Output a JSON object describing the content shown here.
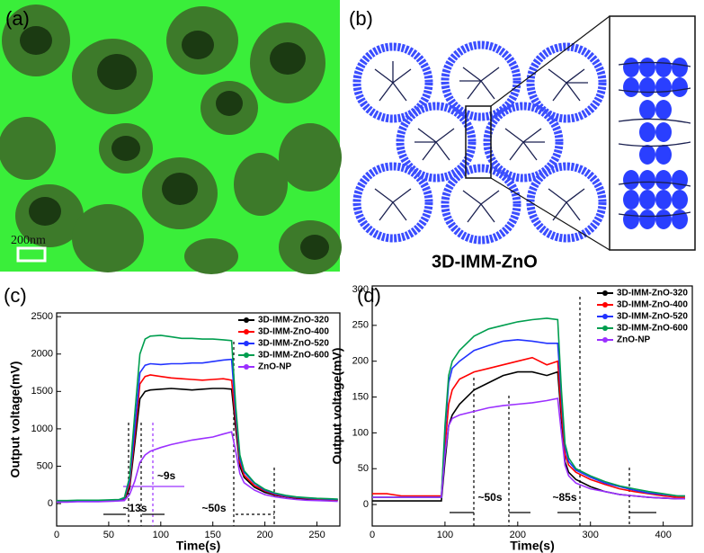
{
  "panels": {
    "a": {
      "label": "(a)",
      "scale_bar": "200nm"
    },
    "b": {
      "label": "(b)",
      "caption": "3D-IMM-ZnO"
    }
  },
  "chart_data": [
    {
      "type": "line",
      "panel_label": "(c)",
      "xlabel": "Time(s)",
      "ylabel": "Output voltage(mV)",
      "xlim": [
        0,
        272
      ],
      "ylim": [
        -300,
        2550
      ],
      "xticks": [
        0,
        50,
        100,
        150,
        200,
        250
      ],
      "yticks": [
        0,
        500,
        1000,
        1500,
        2000,
        2500
      ],
      "legend": "upper right",
      "annotations": [
        "~9s",
        "~13s",
        "~50s"
      ],
      "x": [
        0,
        10,
        20,
        30,
        40,
        50,
        60,
        65,
        70,
        75,
        80,
        85,
        90,
        100,
        110,
        120,
        130,
        140,
        150,
        160,
        168,
        172,
        176,
        180,
        190,
        200,
        210,
        220,
        230,
        240,
        250,
        260,
        270
      ],
      "series": [
        {
          "name": "3D-IMM-ZnO-320",
          "color": "#000000",
          "values": [
            30,
            30,
            35,
            30,
            35,
            35,
            40,
            50,
            200,
            800,
            1400,
            1500,
            1520,
            1530,
            1540,
            1530,
            1520,
            1530,
            1540,
            1540,
            1530,
            1000,
            500,
            350,
            220,
            150,
            110,
            90,
            70,
            60,
            55,
            50,
            45
          ]
        },
        {
          "name": "3D-IMM-ZnO-400",
          "color": "#ff0000",
          "values": [
            30,
            30,
            35,
            35,
            35,
            40,
            45,
            60,
            250,
            900,
            1600,
            1700,
            1720,
            1700,
            1680,
            1670,
            1660,
            1650,
            1660,
            1670,
            1650,
            1100,
            550,
            380,
            240,
            170,
            120,
            95,
            80,
            70,
            60,
            55,
            50
          ]
        },
        {
          "name": "3D-IMM-ZnO-520",
          "color": "#2233ff",
          "values": [
            35,
            35,
            40,
            40,
            40,
            45,
            50,
            70,
            300,
            1000,
            1750,
            1850,
            1870,
            1860,
            1870,
            1870,
            1880,
            1880,
            1900,
            1920,
            1930,
            1200,
            600,
            420,
            270,
            180,
            130,
            100,
            85,
            75,
            65,
            60,
            55
          ]
        },
        {
          "name": "3D-IMM-ZnO-600",
          "color": "#009e4f",
          "values": [
            40,
            40,
            45,
            45,
            45,
            50,
            55,
            80,
            350,
            1200,
            2000,
            2200,
            2240,
            2250,
            2230,
            2210,
            2210,
            2200,
            2200,
            2190,
            2180,
            1300,
            650,
            440,
            280,
            190,
            140,
            110,
            90,
            80,
            70,
            65,
            60
          ]
        },
        {
          "name": "ZnO-NP",
          "color": "#9b30ff",
          "values": [
            20,
            20,
            25,
            25,
            25,
            30,
            35,
            40,
            120,
            300,
            550,
            650,
            700,
            750,
            790,
            820,
            850,
            870,
            890,
            930,
            960,
            700,
            400,
            280,
            180,
            120,
            90,
            70,
            55,
            45,
            40,
            35,
            30
          ]
        }
      ]
    },
    {
      "type": "line",
      "panel_label": "(d)",
      "xlabel": "Time(s)",
      "ylabel": "Output voltage(mV)",
      "xlim": [
        0,
        440
      ],
      "ylim": [
        -30,
        305
      ],
      "xticks": [
        0,
        100,
        200,
        300,
        400
      ],
      "yticks": [
        0,
        50,
        100,
        150,
        200,
        250,
        300
      ],
      "legend": "upper right",
      "annotations": [
        "~50s",
        "~85s"
      ],
      "x": [
        0,
        20,
        40,
        60,
        80,
        95,
        100,
        105,
        110,
        120,
        140,
        160,
        180,
        200,
        220,
        240,
        255,
        260,
        265,
        270,
        280,
        300,
        320,
        340,
        360,
        380,
        400,
        420,
        430
      ],
      "series": [
        {
          "name": "3D-IMM-ZnO-320",
          "color": "#000000",
          "values": [
            5,
            5,
            5,
            5,
            5,
            5,
            60,
            110,
            125,
            140,
            160,
            170,
            180,
            185,
            185,
            180,
            185,
            120,
            60,
            45,
            35,
            25,
            18,
            14,
            12,
            10,
            9,
            8,
            8
          ]
        },
        {
          "name": "3D-IMM-ZnO-400",
          "color": "#ff0000",
          "values": [
            15,
            15,
            12,
            12,
            12,
            12,
            80,
            140,
            160,
            175,
            185,
            190,
            195,
            200,
            205,
            195,
            200,
            130,
            70,
            55,
            45,
            35,
            28,
            22,
            18,
            15,
            12,
            10,
            10
          ]
        },
        {
          "name": "3D-IMM-ZnO-520",
          "color": "#2233ff",
          "values": [
            10,
            10,
            10,
            10,
            10,
            10,
            100,
            170,
            190,
            200,
            215,
            222,
            228,
            230,
            228,
            225,
            225,
            150,
            80,
            60,
            48,
            38,
            30,
            25,
            20,
            16,
            14,
            12,
            12
          ]
        },
        {
          "name": "3D-IMM-ZnO-600",
          "color": "#009e4f",
          "values": [
            10,
            10,
            10,
            10,
            10,
            10,
            110,
            180,
            200,
            215,
            235,
            245,
            250,
            255,
            258,
            260,
            258,
            160,
            85,
            65,
            50,
            40,
            32,
            26,
            22,
            18,
            15,
            12,
            12
          ]
        },
        {
          "name": "ZnO-NP",
          "color": "#9b30ff",
          "values": [
            10,
            10,
            10,
            10,
            10,
            10,
            70,
            110,
            120,
            125,
            130,
            135,
            138,
            140,
            142,
            145,
            148,
            100,
            55,
            40,
            30,
            22,
            18,
            14,
            12,
            10,
            9,
            8,
            8
          ]
        }
      ]
    }
  ]
}
